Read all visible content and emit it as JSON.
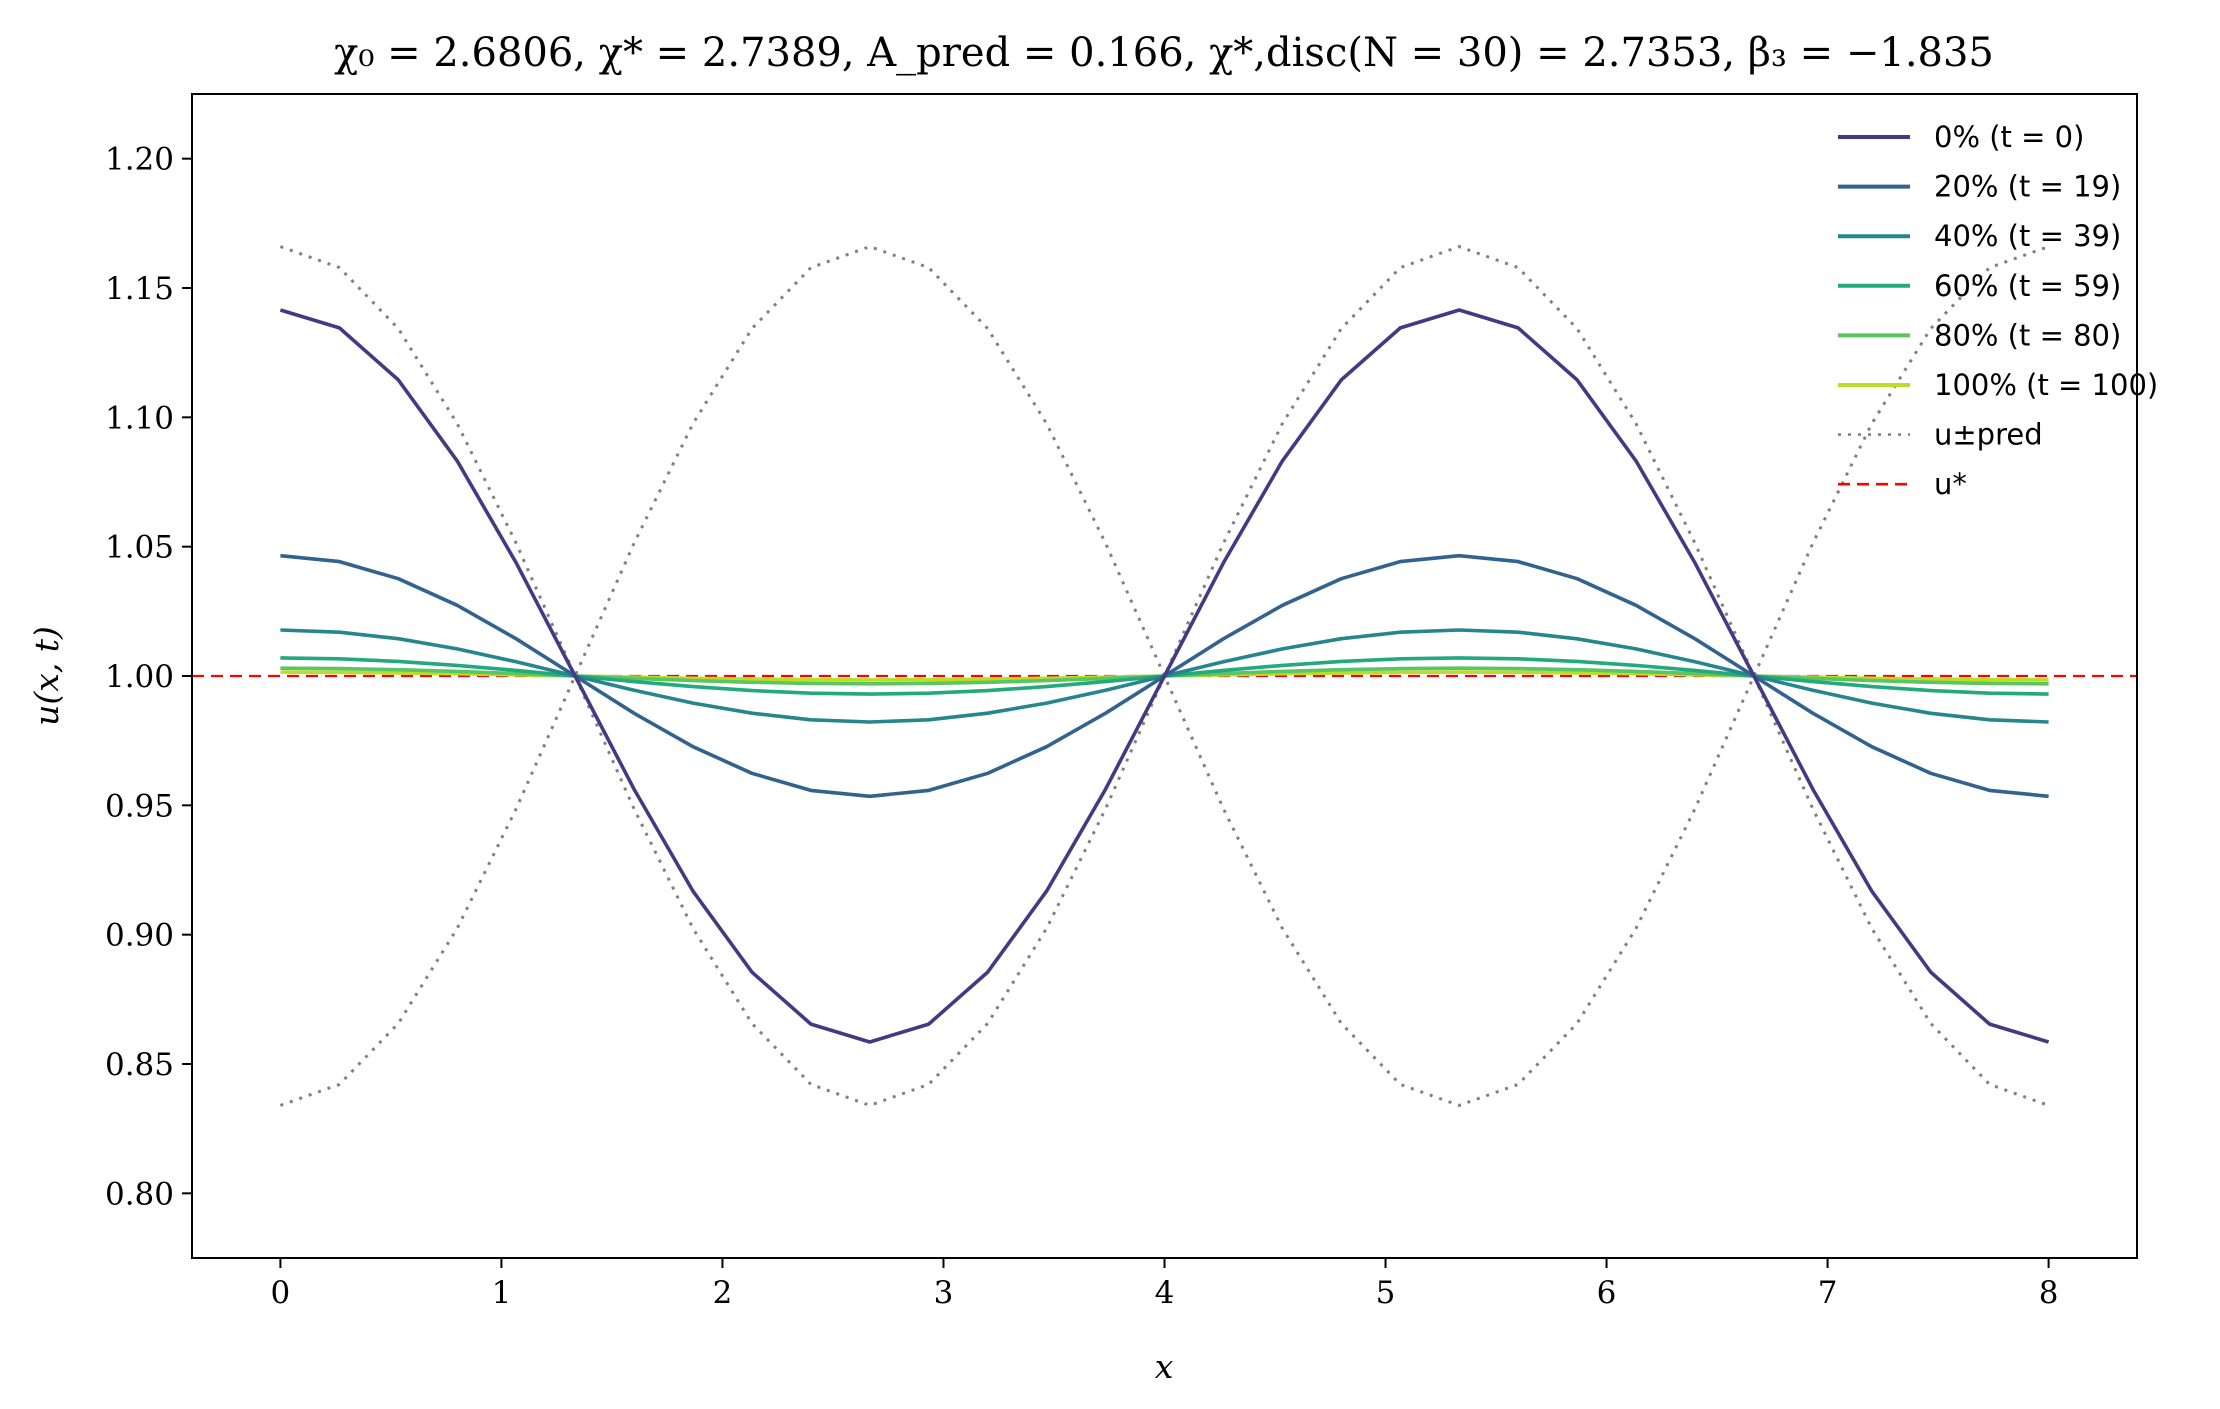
{
  "chart_data": {
    "type": "line",
    "title": "χ₀ = 2.6806,  χ* = 2.7389,  A_pred = 0.166,  χ*,disc(N = 30) = 2.7353,  β₃ = −1.835",
    "xlabel": "x",
    "ylabel": "u(x, t)",
    "xlim": [
      -0.4,
      8.4
    ],
    "ylim": [
      0.775,
      1.225
    ],
    "xticks": [
      "0",
      "1",
      "2",
      "3",
      "4",
      "5",
      "6",
      "7",
      "8"
    ],
    "yticks": [
      "0.80",
      "0.85",
      "0.90",
      "0.95",
      "1.00",
      "1.05",
      "1.10",
      "1.15",
      "1.20"
    ],
    "grid": false,
    "legend_position": "top-right",
    "x": [
      0,
      0.2667,
      0.5333,
      0.8,
      1.0667,
      1.3333,
      1.6,
      1.8667,
      2.1333,
      2.4,
      2.6667,
      2.9333,
      3.2,
      3.4667,
      3.7333,
      4.0,
      4.2667,
      4.5333,
      4.8,
      5.0667,
      5.3333,
      5.6,
      5.8667,
      6.1333,
      6.4,
      6.6667,
      6.9333,
      7.2,
      7.4667,
      7.7333,
      8.0
    ],
    "series": [
      {
        "name": "0% (t = 0)",
        "color": "#433a83",
        "line": "solid",
        "amplitude": 0.1415
      },
      {
        "name": "20% (t = 19)",
        "color": "#32628e",
        "line": "solid",
        "amplitude": 0.0465
      },
      {
        "name": "40% (t = 39)",
        "color": "#25878d",
        "line": "solid",
        "amplitude": 0.0178
      },
      {
        "name": "60% (t = 59)",
        "color": "#24a97d",
        "line": "solid",
        "amplitude": 0.007
      },
      {
        "name": "80% (t = 80)",
        "color": "#5bc563",
        "line": "solid",
        "amplitude": 0.003
      },
      {
        "name": "100% (t = 100)",
        "color": "#b8de29",
        "line": "solid",
        "amplitude": 0.0015
      },
      {
        "name": "u±pred",
        "color": "#808080",
        "line": "dotted",
        "amplitude": 0.166,
        "pair": true
      },
      {
        "name": "u*",
        "color": "#ff0000",
        "line": "dashed",
        "constant": 1.0
      }
    ],
    "wave_period": 5.3333,
    "baseline": 1.0
  }
}
